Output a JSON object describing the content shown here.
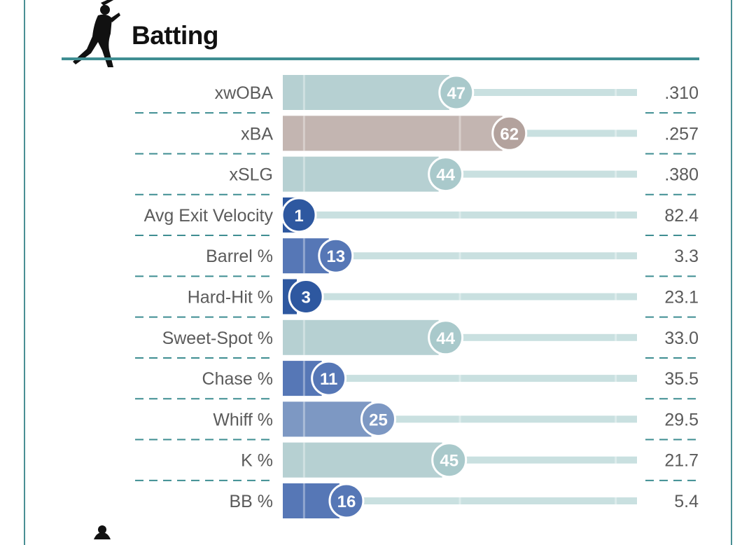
{
  "section": {
    "title": "Batting",
    "icon": "batter-silhouette-icon",
    "next_icon": "pitcher-silhouette-icon"
  },
  "colors": {
    "frame": "#4a8f94",
    "rule": "#3f8e92",
    "track": "#c9e0e0",
    "low_dark": "#2e58a0",
    "low_mid": "#5677b6",
    "low_light": "#7d98c3",
    "average": "#b6d0d2",
    "high_light": "#c3b5b1",
    "high_border_circle": "#ffffff"
  },
  "chart_data": {
    "type": "bar",
    "orientation": "horizontal",
    "scale": [
      0,
      100
    ],
    "metric": "percentile rank",
    "categories": [
      "xwOBA",
      "xBA",
      "xSLG",
      "Avg Exit Velocity",
      "Barrel %",
      "Hard-Hit %",
      "Sweet-Spot %",
      "Chase %",
      "Whiff %",
      "K %",
      "BB %"
    ],
    "percentiles": [
      47,
      62,
      44,
      1,
      13,
      3,
      44,
      11,
      25,
      45,
      16
    ],
    "stat_values": [
      ".310",
      ".257",
      ".380",
      "82.4",
      "3.3",
      "23.1",
      "33.0",
      "35.5",
      "29.5",
      "21.7",
      "5.4"
    ],
    "grid": true,
    "gridlines_at": [
      6,
      50,
      94
    ]
  }
}
